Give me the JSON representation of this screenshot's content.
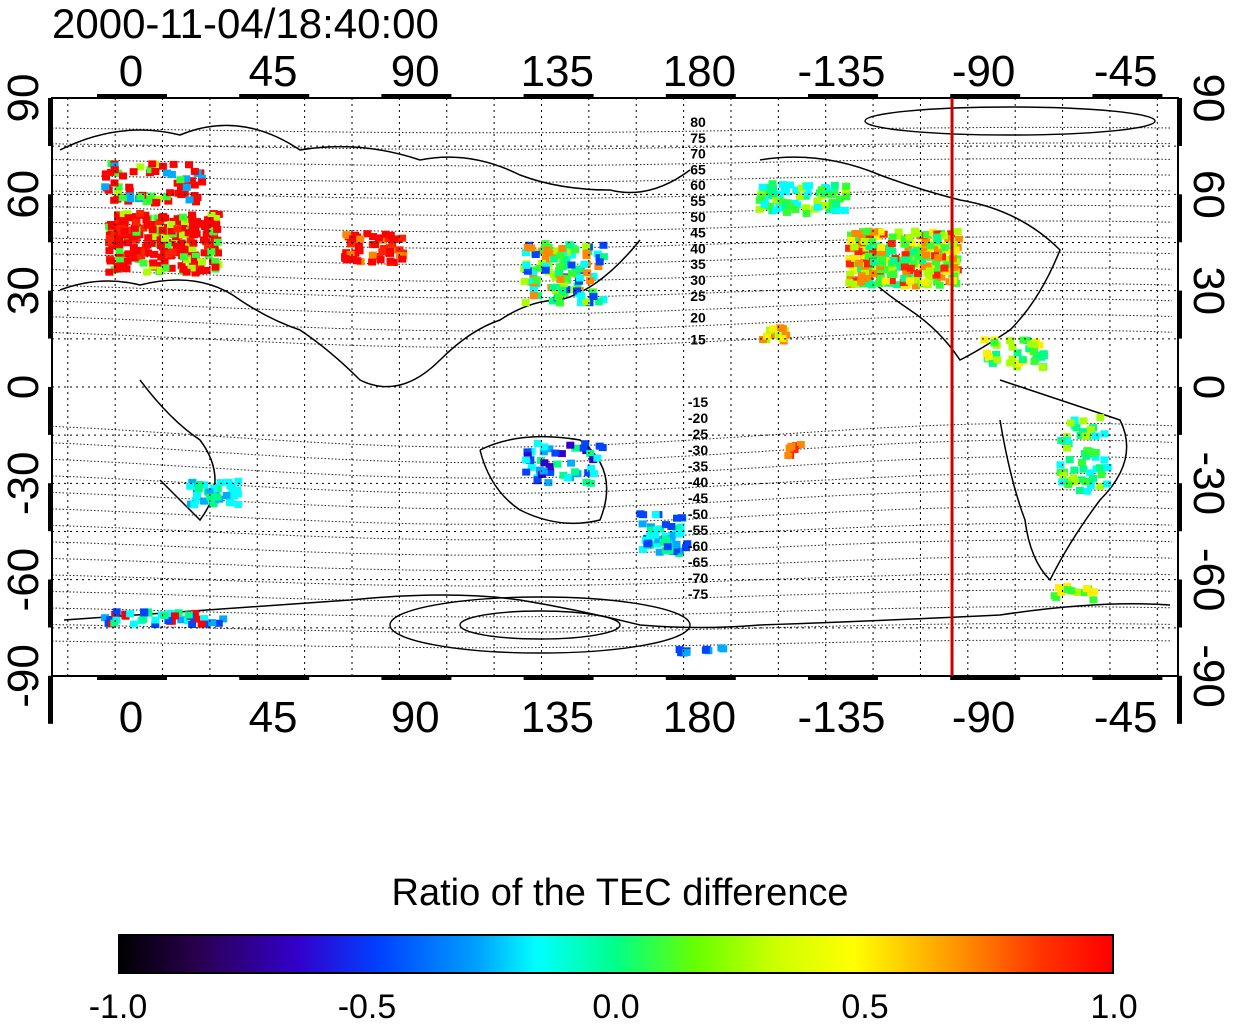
{
  "title": "2000-11-04/18:40:00",
  "map": {
    "x_ticks": [
      "0",
      "45",
      "90",
      "135",
      "180",
      "-135",
      "-90",
      "-45"
    ],
    "y_ticks_left": [
      "90",
      "60",
      "30",
      "0",
      "-30",
      "-60",
      "-90"
    ],
    "y_ticks_right": [
      "90",
      "60",
      "30",
      "0",
      "-30",
      "-60",
      "-90"
    ],
    "marker_longitude": -100,
    "marker_color": "#cc0000",
    "contour_labels_north": [
      "80",
      "75",
      "70",
      "65",
      "60",
      "55",
      "50",
      "45",
      "40",
      "35",
      "30",
      "25",
      "20",
      "15"
    ],
    "contour_labels_south": [
      "-15",
      "-20",
      "-25",
      "-30",
      "-35",
      "-40",
      "-45",
      "-50",
      "-55",
      "-60",
      "-65",
      "-70",
      "-75"
    ]
  },
  "colorbar": {
    "title": "Ratio of the TEC difference",
    "ticks": [
      "-1.0",
      "-0.5",
      "0.0",
      "0.5",
      "1.0"
    ],
    "range": [
      -1.0,
      1.0
    ]
  }
}
